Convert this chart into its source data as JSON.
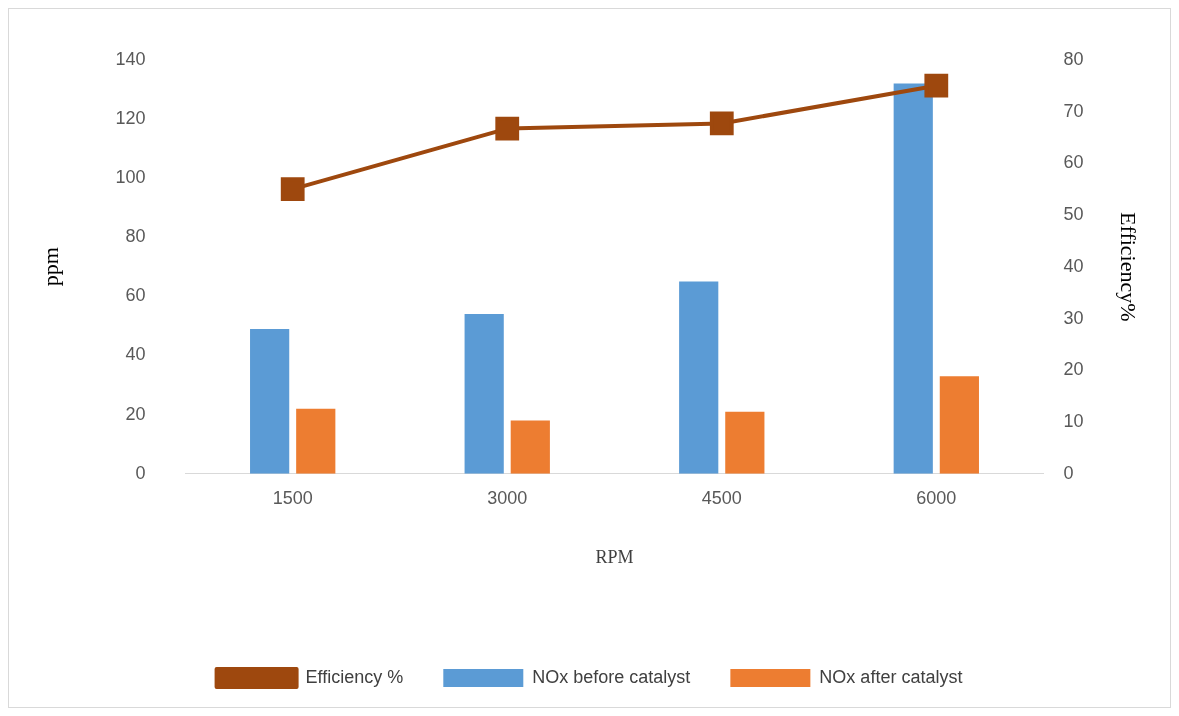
{
  "chart_data": {
    "type": "bar",
    "xlabel": "RPM",
    "ylabel": "ppm",
    "y2label": "Efficiency%",
    "categories": [
      "1500",
      "3000",
      "4500",
      "6000"
    ],
    "series": [
      {
        "name": "NOx before catalyst",
        "color": "#5b9bd5",
        "values": [
          49,
          54,
          65,
          132
        ]
      },
      {
        "name": "NOx after catalyst",
        "color": "#ed7d31",
        "values": [
          22,
          18,
          21,
          33
        ]
      },
      {
        "name": "Efficiency %",
        "type": "line",
        "axis": "y2",
        "color": "#9e480e",
        "marker": "square",
        "values": [
          55,
          66.7,
          67.7,
          75
        ]
      }
    ],
    "ylim": [
      0,
      140
    ],
    "yticks": [
      0,
      20,
      40,
      60,
      80,
      100,
      120,
      140
    ],
    "y2lim": [
      0,
      80
    ],
    "y2ticks": [
      0,
      10,
      20,
      30,
      40,
      50,
      60,
      70,
      80
    ],
    "grid": false,
    "legend": "bottom"
  }
}
